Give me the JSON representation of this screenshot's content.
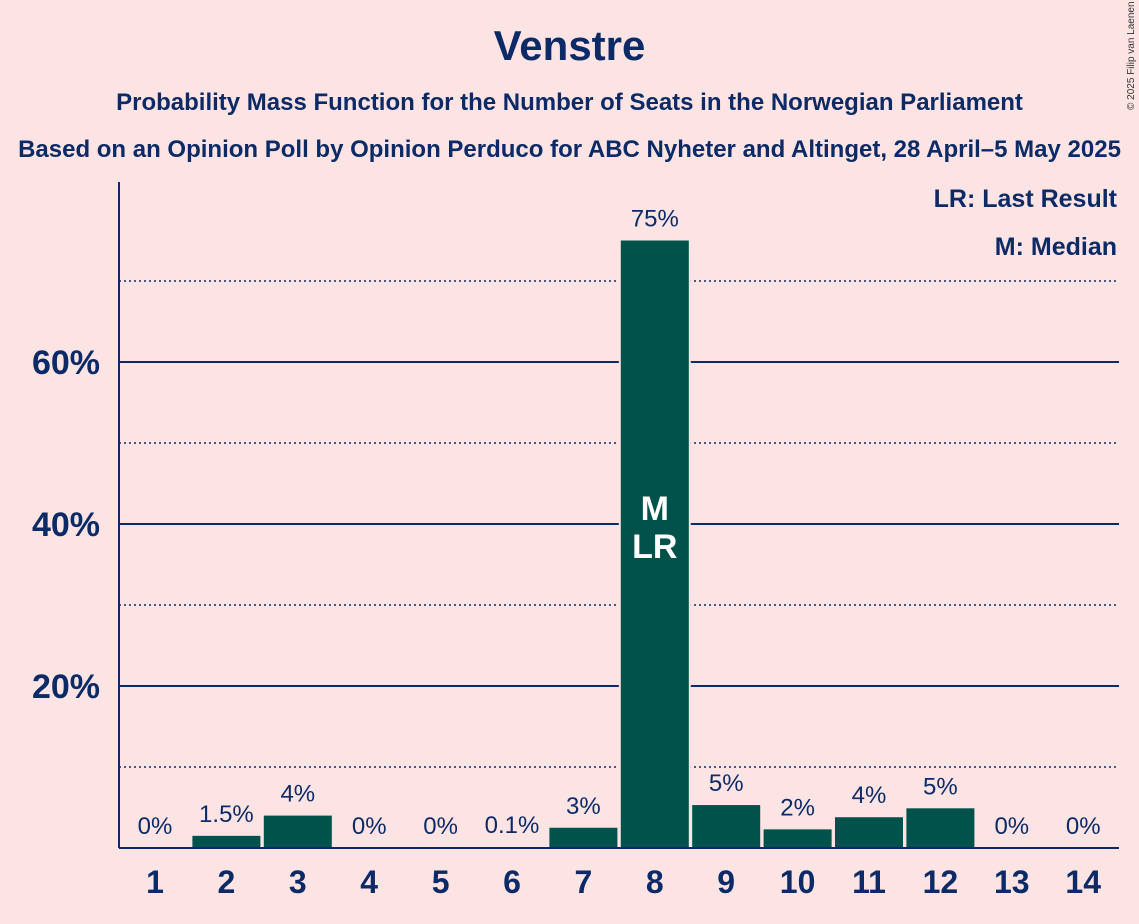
{
  "chart_data": {
    "type": "bar",
    "title": "Venstre",
    "subtitle": "Probability Mass Function for the Number of Seats in the Norwegian Parliament",
    "subtitle2": "Based on an Opinion Poll by Opinion Perduco for ABC Nyheter and Altinget, 28 April–5 May 2025",
    "copyright": "© 2025 Filip van Laenen",
    "categories": [
      "1",
      "2",
      "3",
      "4",
      "5",
      "6",
      "7",
      "8",
      "9",
      "10",
      "11",
      "12",
      "13",
      "14"
    ],
    "values": [
      0,
      1.5,
      4,
      0,
      0,
      0.1,
      2.5,
      75,
      5.3,
      2.3,
      3.8,
      4.9,
      0,
      0
    ],
    "data_labels": [
      "0%",
      "1.5%",
      "4%",
      "0%",
      "0%",
      "0.1%",
      "3%",
      "75%",
      "5%",
      "2%",
      "4%",
      "5%",
      "0%",
      "0%"
    ],
    "y_ticks": [
      20,
      40,
      60
    ],
    "y_tick_labels": [
      "20%",
      "40%",
      "60%"
    ],
    "y_minor_gridlines": [
      10,
      30,
      50,
      70
    ],
    "ylim": [
      0,
      82
    ],
    "median_label": "M",
    "last_result_label": "LR",
    "marked_category": "8",
    "legend": {
      "placement": "top-right",
      "last_result": "LR: Last Result",
      "median": "M: Median"
    },
    "colors": {
      "bar": "#00524a",
      "text": "#0b2a66",
      "background": "#fde4e4",
      "grid": "#0b2a66"
    }
  }
}
